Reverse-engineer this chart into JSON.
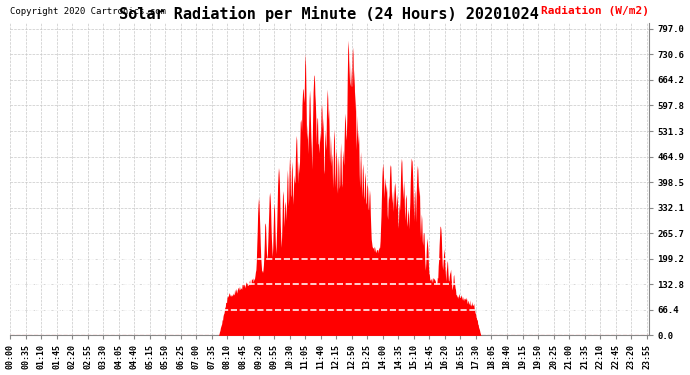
{
  "title": "Solar Radiation per Minute (24 Hours) 20201024",
  "ylabel": "Radiation (W/m2)",
  "copyright": "Copyright 2020 Cartronics.com",
  "bg_color": "#ffffff",
  "fill_color": "#ff0000",
  "ytick_values": [
    0.0,
    66.4,
    132.8,
    199.2,
    265.7,
    332.1,
    398.5,
    464.9,
    531.3,
    597.8,
    664.2,
    730.6,
    797.0
  ],
  "ymax": 797.0,
  "ymin": 0.0,
  "grid_color": "#c8c8c8",
  "dashed_hline_values": [
    66.4,
    132.8,
    199.2
  ],
  "xtick_interval_minutes": 35,
  "title_fontsize": 11,
  "tick_fontsize": 6.5,
  "ylabel_fontsize": 8
}
